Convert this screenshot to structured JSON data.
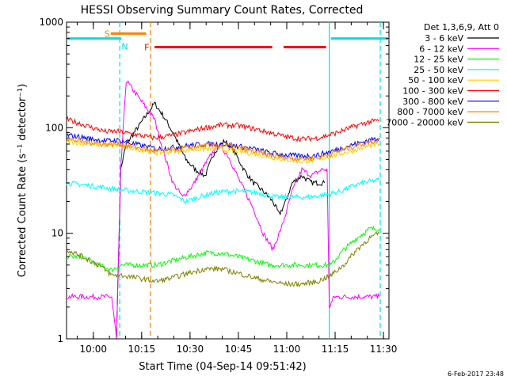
{
  "chart_data": {
    "type": "line",
    "title": "HESSI Observing Summary Count Rates, Corrected",
    "xlabel": "Start Time (04-Sep-14 09:51:42)",
    "ylabel": "Corrected Count Rate (s⁻¹ detector⁻¹)",
    "y_scale": "log",
    "ylim": [
      1,
      1000
    ],
    "xlim_minutes_after_start": [
      0,
      100
    ],
    "x_ticks": [
      {
        "label": "10:00",
        "minutes_after_start": 8.3
      },
      {
        "label": "10:15",
        "minutes_after_start": 23.3
      },
      {
        "label": "10:30",
        "minutes_after_start": 38.3
      },
      {
        "label": "10:45",
        "minutes_after_start": 53.3
      },
      {
        "label": "11:00",
        "minutes_after_start": 68.3
      },
      {
        "label": "11:15",
        "minutes_after_start": 83.3
      },
      {
        "label": "11:30",
        "minutes_after_start": 98.3
      }
    ],
    "y_ticks": [
      {
        "label": "1",
        "value": 1
      },
      {
        "label": "10",
        "value": 10
      },
      {
        "label": "100",
        "value": 100
      },
      {
        "label": "1000",
        "value": 1000
      }
    ],
    "legend_header": "Det 1,3,6,9, Att 0",
    "legend_position": "right",
    "footer_date": "6-Feb-2017 23:48",
    "flag_bars": [
      {
        "label": "S",
        "color": "#ff8000",
        "value": 780,
        "segments": [
          [
            13.7,
            24.7
          ]
        ]
      },
      {
        "label": "N",
        "color": "#00e0e0",
        "value": 700,
        "segments": [
          [
            0,
            17
          ],
          [
            82,
            100
          ]
        ]
      },
      {
        "label": "F",
        "color": "#ff0000",
        "value": 580,
        "segments": [
          [
            27.3,
            63.8
          ],
          [
            67.3,
            80.5
          ]
        ]
      }
    ],
    "vertical_markers": [
      {
        "color": "#00e0e0",
        "x_minutes_after_start": 16.5,
        "style": "dashed"
      },
      {
        "color": "#ff8000",
        "x_minutes_after_start": 26.0,
        "style": "dashed"
      },
      {
        "color": "#00e0e0",
        "x_minutes_after_start": 97.3,
        "style": "dashed"
      },
      {
        "color": "#00e0e0",
        "x_minutes_after_start": 81.5,
        "style": "solid"
      }
    ],
    "series": [
      {
        "name": "3 - 6 keV",
        "color": "#000000",
        "values": [
          [
            15.5,
            1
          ],
          [
            16.8,
            40
          ],
          [
            18.5,
            70
          ],
          [
            27.3,
            170
          ],
          [
            30,
            130
          ],
          [
            33,
            90
          ],
          [
            37,
            50
          ],
          [
            40,
            40
          ],
          [
            43,
            35
          ],
          [
            46,
            60
          ],
          [
            49,
            75
          ],
          [
            52,
            60
          ],
          [
            55,
            40
          ],
          [
            58,
            30
          ],
          [
            61,
            25
          ],
          [
            64,
            20
          ],
          [
            66,
            15
          ],
          [
            68,
            20
          ],
          [
            70,
            30
          ],
          [
            73,
            35
          ],
          [
            76,
            30
          ],
          [
            80,
            30
          ]
        ]
      },
      {
        "name": "6 - 12 keV",
        "color": "#ff00ff",
        "values": [
          [
            0,
            2.5
          ],
          [
            5,
            2.5
          ],
          [
            10,
            2.5
          ],
          [
            14,
            2.5
          ],
          [
            15.5,
            1
          ],
          [
            16.8,
            40
          ],
          [
            18.5,
            280
          ],
          [
            27.3,
            120
          ],
          [
            30,
            60
          ],
          [
            33,
            30
          ],
          [
            36,
            22
          ],
          [
            39,
            28
          ],
          [
            43,
            45
          ],
          [
            47,
            70
          ],
          [
            50,
            55
          ],
          [
            54,
            30
          ],
          [
            58,
            17
          ],
          [
            61,
            10
          ],
          [
            64,
            7
          ],
          [
            67,
            12
          ],
          [
            70,
            25
          ],
          [
            73,
            40
          ],
          [
            76,
            35
          ],
          [
            79,
            40
          ],
          [
            80.8,
            40
          ],
          [
            81.5,
            2
          ],
          [
            83,
            2.5
          ],
          [
            88,
            2.5
          ],
          [
            92,
            2.5
          ],
          [
            97,
            2.5
          ]
        ]
      },
      {
        "name": "12 - 25 keV",
        "color": "#00ff00",
        "values": [
          [
            0,
            6
          ],
          [
            5,
            6
          ],
          [
            10,
            5
          ],
          [
            14,
            4.5
          ],
          [
            17,
            5
          ],
          [
            28,
            5
          ],
          [
            33,
            5.5
          ],
          [
            38,
            6
          ],
          [
            43,
            6.5
          ],
          [
            48,
            6.5
          ],
          [
            53,
            6
          ],
          [
            58,
            5.5
          ],
          [
            63,
            5
          ],
          [
            68,
            5
          ],
          [
            73,
            5
          ],
          [
            78,
            5
          ],
          [
            82,
            5
          ],
          [
            86,
            7
          ],
          [
            90,
            9
          ],
          [
            94,
            11
          ],
          [
            97,
            11
          ]
        ]
      },
      {
        "name": "25 - 50 keV",
        "color": "#00ffff",
        "values": [
          [
            0,
            30
          ],
          [
            4,
            29
          ],
          [
            8,
            28
          ],
          [
            12,
            27
          ],
          [
            16,
            26
          ],
          [
            28,
            24
          ],
          [
            33,
            23
          ],
          [
            37,
            20
          ],
          [
            41,
            22
          ],
          [
            45,
            24
          ],
          [
            50,
            25
          ],
          [
            55,
            25
          ],
          [
            60,
            24
          ],
          [
            65,
            22
          ],
          [
            70,
            22
          ],
          [
            75,
            22
          ],
          [
            80,
            23
          ],
          [
            85,
            25
          ],
          [
            90,
            29
          ],
          [
            94,
            31
          ],
          [
            97,
            32
          ]
        ]
      },
      {
        "name": "50 - 100 keV",
        "color": "#ffcc00",
        "values": [
          [
            0,
            75
          ],
          [
            4,
            72
          ],
          [
            8,
            70
          ],
          [
            12,
            68
          ],
          [
            16,
            68
          ],
          [
            28,
            58
          ],
          [
            33,
            60
          ],
          [
            38,
            62
          ],
          [
            43,
            63
          ],
          [
            48,
            62
          ],
          [
            53,
            60
          ],
          [
            58,
            57
          ],
          [
            63,
            53
          ],
          [
            68,
            50
          ],
          [
            73,
            48
          ],
          [
            78,
            50
          ],
          [
            83,
            55
          ],
          [
            88,
            60
          ],
          [
            93,
            66
          ],
          [
            97,
            70
          ]
        ]
      },
      {
        "name": "100 - 300 keV",
        "color": "#ff0000",
        "values": [
          [
            0,
            120
          ],
          [
            4,
            110
          ],
          [
            8,
            100
          ],
          [
            12,
            92
          ],
          [
            16,
            92
          ],
          [
            27.3,
            80
          ],
          [
            33,
            85
          ],
          [
            38,
            92
          ],
          [
            43,
            100
          ],
          [
            48,
            106
          ],
          [
            53,
            105
          ],
          [
            58,
            98
          ],
          [
            63,
            90
          ],
          [
            68,
            82
          ],
          [
            73,
            78
          ],
          [
            78,
            80
          ],
          [
            83,
            88
          ],
          [
            88,
            100
          ],
          [
            93,
            112
          ],
          [
            97,
            118
          ]
        ]
      },
      {
        "name": "300 - 800 keV",
        "color": "#0000ff",
        "values": [
          [
            0,
            85
          ],
          [
            4,
            82
          ],
          [
            8,
            78
          ],
          [
            12,
            75
          ],
          [
            16,
            76
          ],
          [
            28,
            63
          ],
          [
            33,
            65
          ],
          [
            38,
            68
          ],
          [
            43,
            70
          ],
          [
            48,
            70
          ],
          [
            53,
            67
          ],
          [
            58,
            63
          ],
          [
            63,
            58
          ],
          [
            68,
            55
          ],
          [
            73,
            54
          ],
          [
            78,
            55
          ],
          [
            83,
            61
          ],
          [
            88,
            68
          ],
          [
            93,
            75
          ],
          [
            97,
            80
          ]
        ]
      },
      {
        "name": "800 - 7000 keV",
        "color": "#ff8000",
        "values": [
          [
            0,
            78
          ],
          [
            4,
            75
          ],
          [
            8,
            72
          ],
          [
            12,
            70
          ],
          [
            16,
            70
          ],
          [
            28,
            60
          ],
          [
            33,
            62
          ],
          [
            38,
            65
          ],
          [
            43,
            68
          ],
          [
            48,
            68
          ],
          [
            53,
            65
          ],
          [
            58,
            60
          ],
          [
            63,
            55
          ],
          [
            68,
            52
          ],
          [
            73,
            51
          ],
          [
            78,
            52
          ],
          [
            83,
            58
          ],
          [
            88,
            65
          ],
          [
            93,
            72
          ],
          [
            97,
            76
          ]
        ]
      },
      {
        "name": "7000 - 20000 keV",
        "color": "#808000",
        "values": [
          [
            0,
            7
          ],
          [
            5,
            6
          ],
          [
            10,
            5
          ],
          [
            14,
            4
          ],
          [
            17,
            4
          ],
          [
            28,
            3.5
          ],
          [
            33,
            3.8
          ],
          [
            38,
            4.2
          ],
          [
            43,
            4.6
          ],
          [
            48,
            4.6
          ],
          [
            53,
            4.2
          ],
          [
            58,
            3.8
          ],
          [
            63,
            3.5
          ],
          [
            68,
            3.3
          ],
          [
            73,
            3.3
          ],
          [
            78,
            3.5
          ],
          [
            82,
            4
          ],
          [
            86,
            5
          ],
          [
            90,
            7
          ],
          [
            94,
            9
          ],
          [
            97,
            10
          ]
        ]
      }
    ]
  }
}
